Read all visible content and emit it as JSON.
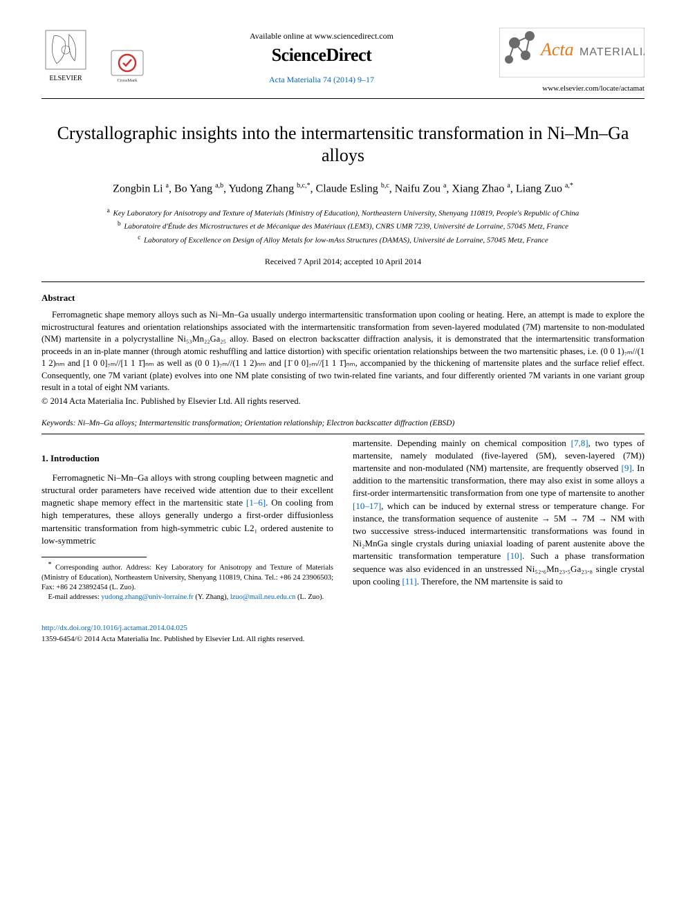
{
  "header": {
    "available_online": "Available online at www.sciencedirect.com",
    "sciencedirect": "ScienceDirect",
    "journal_ref": "Acta Materialia 74 (2014) 9–17",
    "journal_ref_color": "#0066cc",
    "locate_url": "www.elsevier.com/locate/actamat",
    "elsevier_label": "ELSEVIER",
    "crossmark_label": "CrossMark",
    "acta_label": "Acta MATERIALIA",
    "logo_orange": "#e67a17",
    "logo_gray": "#6b6b6b"
  },
  "title": "Crystallographic insights into the intermartensitic transformation in Ni–Mn–Ga alloys",
  "authors_html": "Zongbin Li <sup>a</sup>, Bo Yang <sup>a,b</sup>, Yudong Zhang <sup>b,c,</sup><span class='star'>*</span>, Claude Esling <sup>b,c</sup>, Naifu Zou <sup>a</sup>, Xiang Zhao <sup>a</sup>, Liang Zuo <sup>a,</sup><span class='star'>*</span>",
  "affiliations": {
    "a": "Key Laboratory for Anisotropy and Texture of Materials (Ministry of Education), Northeastern University, Shenyang 110819, People's Republic of China",
    "b": "Laboratoire d'Étude des Microstructures et de Mécanique des Matériaux (LEM3), CNRS UMR 7239, Université de Lorraine, 57045 Metz, France",
    "c": "Laboratory of Excellence on Design of Alloy Metals for low-mAss Structures (DAMAS), Université de Lorraine, 57045 Metz, France"
  },
  "dates": "Received 7 April 2014; accepted 10 April 2014",
  "abstract": {
    "heading": "Abstract",
    "body": "Ferromagnetic shape memory alloys such as Ni–Mn–Ga usually undergo intermartensitic transformation upon cooling or heating. Here, an attempt is made to explore the microstructural features and orientation relationships associated with the intermartensitic transformation from seven-layered modulated (7M) martensite to non-modulated (NM) martensite in a polycrystalline Ni₅₃Mn₂₂Ga₂₅ alloy. Based on electron backscatter diffraction analysis, it is demonstrated that the intermartensitic transformation proceeds in an in-plate manner (through atomic reshuffling and lattice distortion) with specific orientation relationships between the two martensitic phases, i.e. (0 0 1)₇ₘ//(1 1 2)ₙₘ and [1 0 0]₇ₘ//[1 1 1̄]ₙₘ as well as (0 0 1)₇ₘ//(1 1 2)ₙₘ and [1̄ 0 0]₇ₘ//[1 1 1̄]ₙₘ, accompanied by the thickening of martensite plates and the surface relief effect. Consequently, one 7M variant (plate) evolves into one NM plate consisting of two twin-related fine variants, and four differently oriented 7M variants in one variant group result in a total of eight NM variants.",
    "copyright": "© 2014 Acta Materialia Inc. Published by Elsevier Ltd. All rights reserved."
  },
  "keywords": {
    "label": "Keywords:",
    "text": "Ni–Mn–Ga alloys; Intermartensitic transformation; Orientation relationship; Electron backscatter diffraction (EBSD)"
  },
  "section1": {
    "heading": "1. Introduction",
    "para1_pre": "Ferromagnetic Ni–Mn–Ga alloys with strong coupling between magnetic and structural order parameters have received wide attention due to their excellent magnetic shape memory effect in the martensitic state ",
    "cite1": "[1–6]",
    "para1_post": ". On cooling from high temperatures, these alloys generally undergo a first-order diffusionless martensitic transformation from high-symmetric cubic L2₁ ordered austenite to low-symmetric",
    "para2_a": "martensite. Depending mainly on chemical composition ",
    "cite2": "[7,8]",
    "para2_b": ", two types of martensite, namely modulated (five-layered (5M), seven-layered (7M)) martensite and non-modulated (NM) martensite, are frequently observed ",
    "cite3": "[9]",
    "para2_c": ". In addition to the martensitic transformation, there may also exist in some alloys a first-order intermartensitic transformation from one type of martensite to another ",
    "cite4": "[10–17]",
    "para2_d": ", which can be induced by external stress or temperature change. For instance, the transformation sequence of austenite → 5M → 7M → NM with two successive stress-induced intermartensitic transformations was found in Ni₂MnGa single crystals during uniaxial loading of parent austenite above the martensitic transformation temperature ",
    "cite5": "[10]",
    "para2_e": ". Such a phase transformation sequence was also evidenced in an unstressed Ni₅₂.₆Mn₂₃.₅Ga₂₃.₈ single crystal upon cooling ",
    "cite6": "[11]",
    "para2_f": ". Therefore, the NM martensite is said to"
  },
  "footnotes": {
    "corr": "Corresponding author. Address: Key Laboratory for Anisotropy and Texture of Materials (Ministry of Education), Northeastern University, Shenyang 110819, China. Tel.: +86 24 23906503; Fax: +86 24 23892454 (L. Zuo).",
    "email_label": "E-mail addresses:",
    "email1": "yudong.zhang@univ-lorraine.fr",
    "email1_name": "(Y. Zhang),",
    "email2": "lzuo@mail.neu.edu.cn",
    "email2_name": "(L. Zuo)."
  },
  "footer": {
    "doi": "http://dx.doi.org/10.1016/j.actamat.2014.04.025",
    "line2": "1359-6454/© 2014 Acta Materialia Inc. Published by Elsevier Ltd. All rights reserved."
  },
  "colors": {
    "link": "#0066cc",
    "text": "#000000",
    "background": "#ffffff"
  }
}
